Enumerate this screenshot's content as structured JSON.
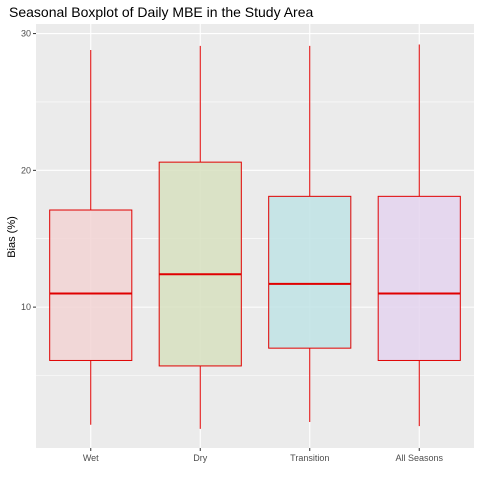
{
  "chart_data": {
    "type": "boxplot",
    "title": "Seasonal Boxplot of Daily MBE in the Study Area",
    "xlabel": "",
    "ylabel": "Bias (%)",
    "ylim": [
      -0.3,
      30.7
    ],
    "yticks": [
      10,
      20,
      30
    ],
    "grid": true,
    "legend": "none",
    "categories": [
      "Wet",
      "Dry",
      "Transition",
      "All Seasons"
    ],
    "boxes": [
      {
        "category": "Wet",
        "min": 1.4,
        "q1": 6.1,
        "median": 11.0,
        "q3": 17.1,
        "max": 28.8,
        "fill": "#f2d4d4"
      },
      {
        "category": "Dry",
        "min": 1.1,
        "q1": 5.7,
        "median": 12.4,
        "q3": 20.6,
        "max": 29.1,
        "fill": "#d7e0bf"
      },
      {
        "category": "Transition",
        "min": 1.6,
        "q1": 7.0,
        "median": 11.7,
        "q3": 18.1,
        "max": 29.1,
        "fill": "#bfe3e5"
      },
      {
        "category": "All Seasons",
        "min": 1.3,
        "q1": 6.1,
        "median": 11.0,
        "q3": 18.1,
        "max": 29.2,
        "fill": "#e4d4ef"
      }
    ],
    "line_color": "#e00000",
    "panel_color": "#ebebeb",
    "grid_color": "#ffffff"
  }
}
